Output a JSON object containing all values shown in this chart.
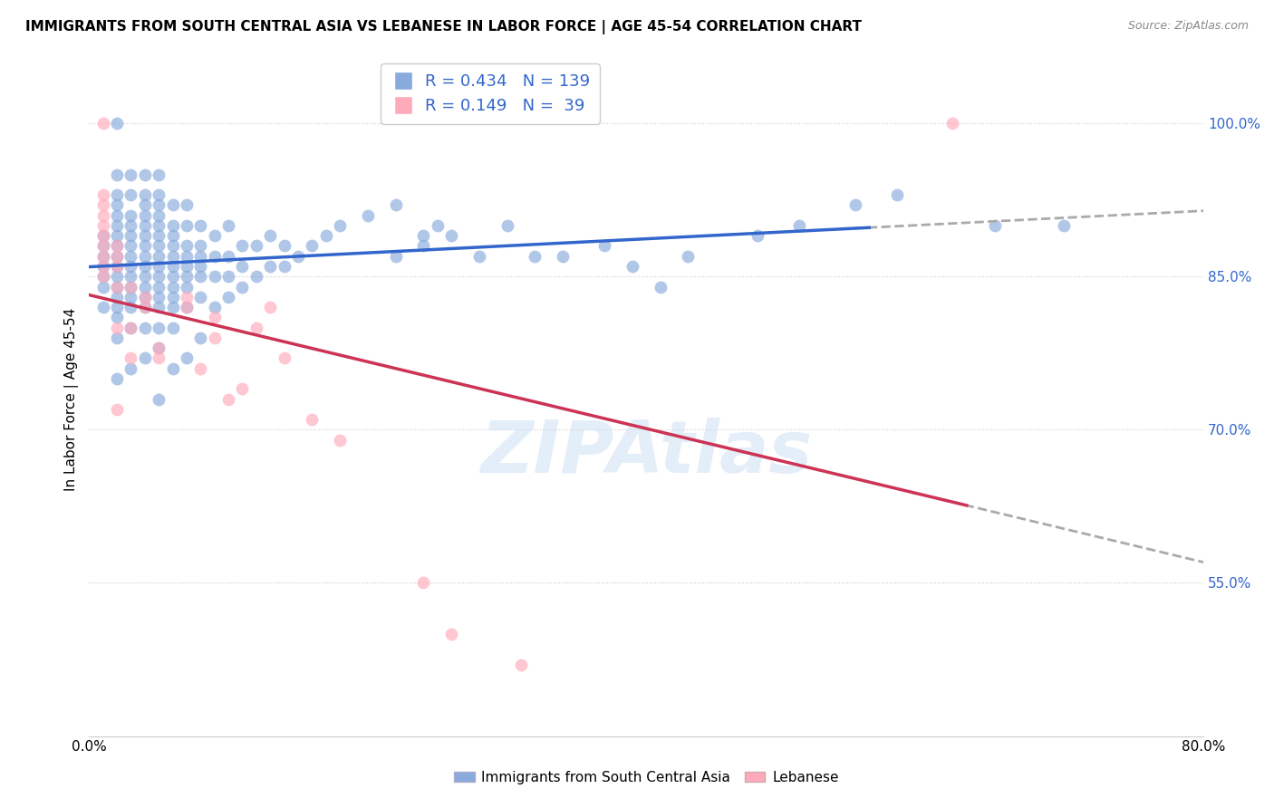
{
  "title": "IMMIGRANTS FROM SOUTH CENTRAL ASIA VS LEBANESE IN LABOR FORCE | AGE 45-54 CORRELATION CHART",
  "source": "Source: ZipAtlas.com",
  "ylabel": "In Labor Force | Age 45-54",
  "xlim": [
    0.0,
    0.8
  ],
  "ylim": [
    0.4,
    1.06
  ],
  "xticks": [
    0.0,
    0.1,
    0.2,
    0.3,
    0.4,
    0.5,
    0.6,
    0.7,
    0.8
  ],
  "xticklabels": [
    "0.0%",
    "",
    "",
    "",
    "",
    "",
    "",
    "",
    "80.0%"
  ],
  "yticks_right": [
    0.55,
    0.7,
    0.85,
    1.0
  ],
  "yticklabels_right": [
    "55.0%",
    "70.0%",
    "85.0%",
    "100.0%"
  ],
  "blue_color": "#88aadd",
  "pink_color": "#ffaabb",
  "blue_line_color": "#3366cc",
  "pink_line_color": "#cc3355",
  "dashed_line_color": "#aaaaaa",
  "R_blue": 0.434,
  "N_blue": 139,
  "R_pink": 0.149,
  "N_pink": 39,
  "tick_color": "#3366cc",
  "watermark": "ZIPAtlas",
  "blue_scatter_x": [
    0.01,
    0.01,
    0.01,
    0.01,
    0.01,
    0.01,
    0.01,
    0.02,
    0.02,
    0.02,
    0.02,
    0.02,
    0.02,
    0.02,
    0.02,
    0.02,
    0.02,
    0.02,
    0.02,
    0.02,
    0.02,
    0.02,
    0.02,
    0.02,
    0.03,
    0.03,
    0.03,
    0.03,
    0.03,
    0.03,
    0.03,
    0.03,
    0.03,
    0.03,
    0.03,
    0.03,
    0.03,
    0.03,
    0.04,
    0.04,
    0.04,
    0.04,
    0.04,
    0.04,
    0.04,
    0.04,
    0.04,
    0.04,
    0.04,
    0.04,
    0.04,
    0.04,
    0.04,
    0.05,
    0.05,
    0.05,
    0.05,
    0.05,
    0.05,
    0.05,
    0.05,
    0.05,
    0.05,
    0.05,
    0.05,
    0.05,
    0.05,
    0.05,
    0.05,
    0.06,
    0.06,
    0.06,
    0.06,
    0.06,
    0.06,
    0.06,
    0.06,
    0.06,
    0.06,
    0.06,
    0.06,
    0.07,
    0.07,
    0.07,
    0.07,
    0.07,
    0.07,
    0.07,
    0.07,
    0.07,
    0.08,
    0.08,
    0.08,
    0.08,
    0.08,
    0.08,
    0.08,
    0.09,
    0.09,
    0.09,
    0.09,
    0.1,
    0.1,
    0.1,
    0.1,
    0.11,
    0.11,
    0.11,
    0.12,
    0.12,
    0.13,
    0.13,
    0.14,
    0.14,
    0.15,
    0.16,
    0.17,
    0.18,
    0.2,
    0.22,
    0.22,
    0.24,
    0.24,
    0.25,
    0.26,
    0.28,
    0.3,
    0.32,
    0.34,
    0.37,
    0.39,
    0.41,
    0.43,
    0.48,
    0.51,
    0.55,
    0.58,
    0.65,
    0.7
  ],
  "blue_scatter_y": [
    0.82,
    0.84,
    0.85,
    0.86,
    0.87,
    0.88,
    0.89,
    0.75,
    0.79,
    0.81,
    0.82,
    0.83,
    0.84,
    0.85,
    0.86,
    0.87,
    0.88,
    0.89,
    0.9,
    0.91,
    0.92,
    0.93,
    0.95,
    1.0,
    0.76,
    0.8,
    0.82,
    0.83,
    0.84,
    0.85,
    0.86,
    0.87,
    0.88,
    0.89,
    0.9,
    0.91,
    0.93,
    0.95,
    0.77,
    0.8,
    0.82,
    0.83,
    0.84,
    0.85,
    0.86,
    0.87,
    0.88,
    0.89,
    0.9,
    0.91,
    0.92,
    0.93,
    0.95,
    0.73,
    0.78,
    0.8,
    0.82,
    0.83,
    0.84,
    0.85,
    0.86,
    0.87,
    0.88,
    0.89,
    0.9,
    0.91,
    0.92,
    0.93,
    0.95,
    0.76,
    0.8,
    0.82,
    0.83,
    0.84,
    0.85,
    0.86,
    0.87,
    0.88,
    0.89,
    0.9,
    0.92,
    0.77,
    0.82,
    0.84,
    0.85,
    0.86,
    0.87,
    0.88,
    0.9,
    0.92,
    0.79,
    0.83,
    0.85,
    0.86,
    0.87,
    0.88,
    0.9,
    0.82,
    0.85,
    0.87,
    0.89,
    0.83,
    0.85,
    0.87,
    0.9,
    0.84,
    0.86,
    0.88,
    0.85,
    0.88,
    0.86,
    0.89,
    0.86,
    0.88,
    0.87,
    0.88,
    0.89,
    0.9,
    0.91,
    0.92,
    0.87,
    0.88,
    0.89,
    0.9,
    0.89,
    0.87,
    0.9,
    0.87,
    0.87,
    0.88,
    0.86,
    0.84,
    0.87,
    0.89,
    0.9,
    0.92,
    0.93,
    0.9,
    0.9
  ],
  "pink_scatter_x": [
    0.01,
    0.01,
    0.01,
    0.01,
    0.01,
    0.01,
    0.01,
    0.01,
    0.01,
    0.01,
    0.02,
    0.02,
    0.02,
    0.02,
    0.02,
    0.02,
    0.03,
    0.03,
    0.03,
    0.04,
    0.04,
    0.05,
    0.05,
    0.07,
    0.07,
    0.08,
    0.09,
    0.09,
    0.1,
    0.11,
    0.12,
    0.13,
    0.14,
    0.16,
    0.18,
    0.24,
    0.26,
    0.31,
    0.62
  ],
  "pink_scatter_y": [
    0.85,
    0.86,
    0.87,
    0.88,
    0.89,
    0.9,
    0.91,
    0.92,
    0.93,
    1.0,
    0.72,
    0.8,
    0.84,
    0.86,
    0.87,
    0.88,
    0.77,
    0.8,
    0.84,
    0.82,
    0.83,
    0.77,
    0.78,
    0.82,
    0.83,
    0.76,
    0.79,
    0.81,
    0.73,
    0.74,
    0.8,
    0.82,
    0.77,
    0.71,
    0.69,
    0.55,
    0.5,
    0.47,
    1.0
  ]
}
